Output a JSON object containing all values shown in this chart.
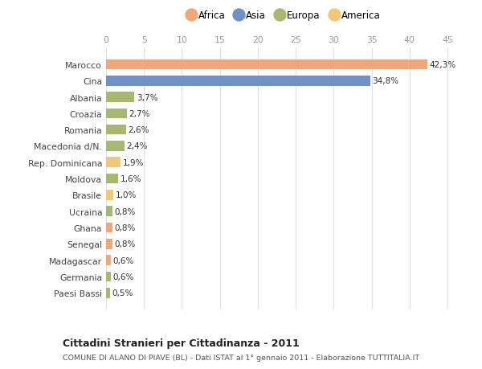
{
  "countries": [
    "Marocco",
    "Cina",
    "Albania",
    "Croazia",
    "Romania",
    "Macedonia d/N.",
    "Rep. Dominicana",
    "Moldova",
    "Brasile",
    "Ucraina",
    "Ghana",
    "Senegal",
    "Madagascar",
    "Germania",
    "Paesi Bassi"
  ],
  "values": [
    42.3,
    34.8,
    3.7,
    2.7,
    2.6,
    2.4,
    1.9,
    1.6,
    1.0,
    0.8,
    0.8,
    0.8,
    0.6,
    0.6,
    0.5
  ],
  "labels": [
    "42,3%",
    "34,8%",
    "3,7%",
    "2,7%",
    "2,6%",
    "2,4%",
    "1,9%",
    "1,6%",
    "1,0%",
    "0,8%",
    "0,8%",
    "0,8%",
    "0,6%",
    "0,6%",
    "0,5%"
  ],
  "colors": [
    "#F0A878",
    "#7090C8",
    "#A8B870",
    "#A8B870",
    "#A8B870",
    "#A8B870",
    "#F0C878",
    "#A8B870",
    "#F0C878",
    "#A8B870",
    "#F0A878",
    "#F0A878",
    "#F0A878",
    "#A8B870",
    "#A8B870"
  ],
  "legend_labels": [
    "Africa",
    "Asia",
    "Europa",
    "America"
  ],
  "legend_colors": [
    "#F0A878",
    "#7090C8",
    "#A8B870",
    "#F0C878"
  ],
  "title": "Cittadini Stranieri per Cittadinanza - 2011",
  "subtitle": "COMUNE DI ALANO DI PIAVE (BL) - Dati ISTAT al 1° gennaio 2011 - Elaborazione TUTTITALIA.IT",
  "xlim": [
    0,
    47
  ],
  "xticks": [
    0,
    5,
    10,
    15,
    20,
    25,
    30,
    35,
    40,
    45
  ],
  "bg_color": "#FFFFFF",
  "grid_color": "#E0E0E0"
}
